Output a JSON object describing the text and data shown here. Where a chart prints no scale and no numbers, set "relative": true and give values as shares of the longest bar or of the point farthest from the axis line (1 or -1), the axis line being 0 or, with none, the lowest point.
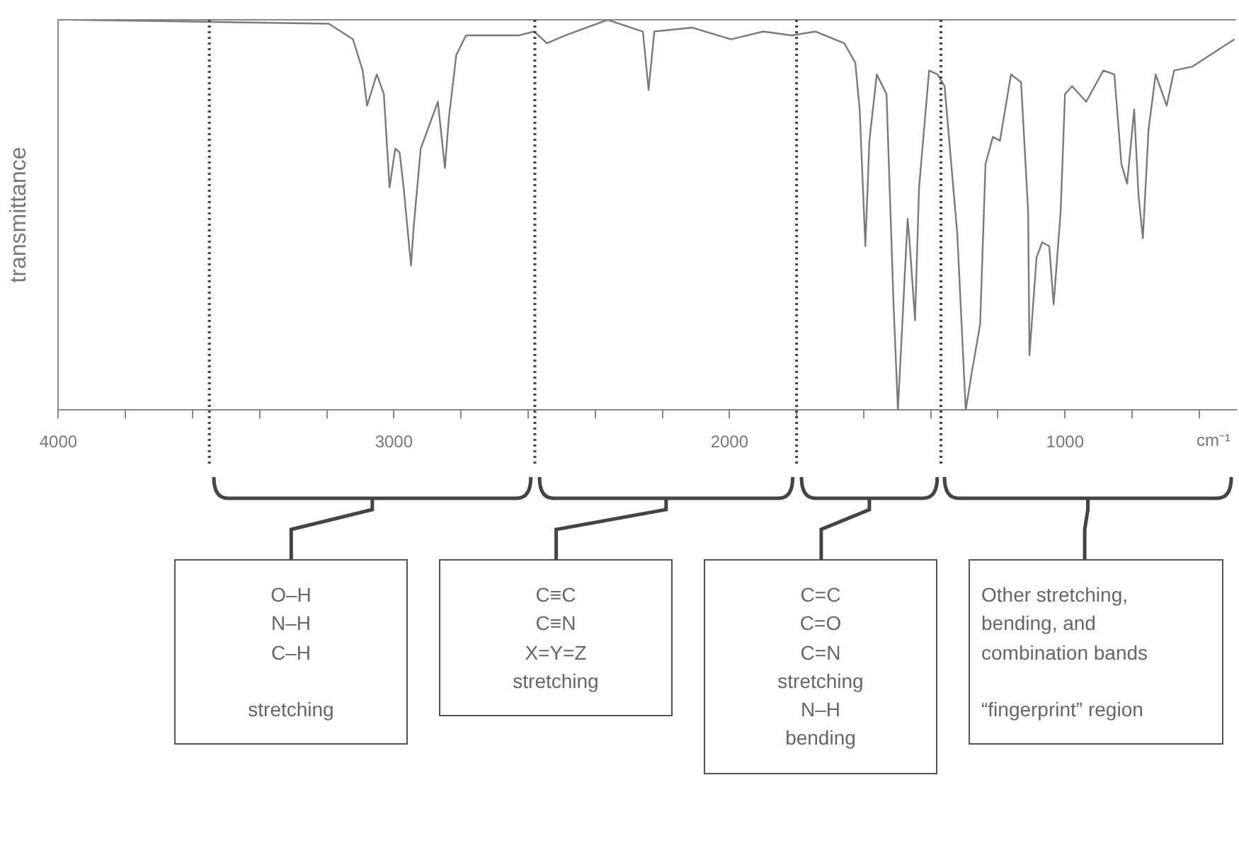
{
  "chart_data": {
    "type": "line",
    "relative": true,
    "ylabel": "transmittance",
    "xlabel": "cm⁻¹",
    "xlim": [
      4000,
      490
    ],
    "xticks": [
      4000,
      {
        "value": 3800,
        "label": null
      },
      {
        "value": 3600,
        "label": null
      },
      {
        "value": 3400,
        "label": null
      },
      {
        "value": 3200,
        "label": null
      },
      3000,
      {
        "value": 2800,
        "label": null
      },
      {
        "value": 2600,
        "label": null
      },
      {
        "value": 2400,
        "label": null
      },
      {
        "value": 2200,
        "label": null
      },
      2000,
      {
        "value": 1800,
        "label": null
      },
      {
        "value": 1600,
        "label": null
      },
      {
        "value": 1400,
        "label": null
      },
      {
        "value": 1200,
        "label": null
      },
      1000,
      {
        "value": 800,
        "label": null
      },
      {
        "value": 600,
        "label": null
      }
    ],
    "series": [
      {
        "color": "#7a7a7a",
        "x": [
          3958,
          3194,
          3122,
          3093,
          3080,
          3051,
          3030,
          3013,
          2996,
          2983,
          2971,
          2949,
          2941,
          2920,
          2869,
          2848,
          2836,
          2814,
          2785,
          2629,
          2582,
          2544,
          2490,
          2363,
          2258,
          2241,
          2224,
          2110,
          1996,
          1899,
          1815,
          1743,
          1658,
          1625,
          1612,
          1595,
          1583,
          1561,
          1532,
          1511,
          1498,
          1485,
          1469,
          1464,
          1447,
          1435,
          1405,
          1380,
          1359,
          1321,
          1296,
          1279,
          1253,
          1237,
          1215,
          1194,
          1161,
          1131,
          1110,
          1106,
          1085,
          1068,
          1047,
          1034,
          1013,
          1000,
          979,
          937,
          886,
          853,
          832,
          815,
          794,
          781,
          768,
          751,
          730,
          697,
          675,
          621,
          549,
          495
        ],
        "values": [
          1.0,
          0.99,
          0.95,
          0.87,
          0.78,
          0.86,
          0.81,
          0.57,
          0.67,
          0.66,
          0.57,
          0.37,
          0.47,
          0.67,
          0.79,
          0.62,
          0.75,
          0.91,
          0.96,
          0.96,
          0.97,
          0.94,
          0.96,
          1.0,
          0.97,
          0.82,
          0.97,
          0.98,
          0.95,
          0.97,
          0.96,
          0.97,
          0.94,
          0.89,
          0.77,
          0.42,
          0.69,
          0.86,
          0.81,
          0.27,
          0.0,
          0.22,
          0.49,
          0.44,
          0.23,
          0.57,
          0.87,
          0.86,
          0.83,
          0.45,
          0.0,
          0.09,
          0.22,
          0.63,
          0.7,
          0.69,
          0.86,
          0.84,
          0.51,
          0.14,
          0.39,
          0.43,
          0.42,
          0.27,
          0.51,
          0.81,
          0.83,
          0.79,
          0.87,
          0.86,
          0.63,
          0.58,
          0.77,
          0.55,
          0.44,
          0.72,
          0.86,
          0.78,
          0.87,
          0.88,
          0.92,
          0.95
        ]
      }
    ],
    "ref_lines": [
      {
        "axis": "x",
        "value": 3550,
        "color": "#444444",
        "line_style": "dotted"
      },
      {
        "axis": "x",
        "value": 2580,
        "color": "#444444",
        "line_style": "dotted"
      },
      {
        "axis": "x",
        "value": 1800,
        "color": "#444444",
        "line_style": "dotted"
      },
      {
        "axis": "x",
        "value": 1370,
        "color": "#444444",
        "line_style": "dotted"
      }
    ],
    "annotations": [
      "O–H\nN–H\nC–H\n\nstretching",
      "C≡C\nC≡N\nX=Y=Z\nstretching",
      "C=C\nC=O\nC=N\nstretching\nN–H\nbending",
      "Other stretching,\nbending, and\ncombination bands\n\n“fingerprint” region"
    ],
    "grid": false,
    "legend": false,
    "marker": "none",
    "line_style": "solid"
  }
}
